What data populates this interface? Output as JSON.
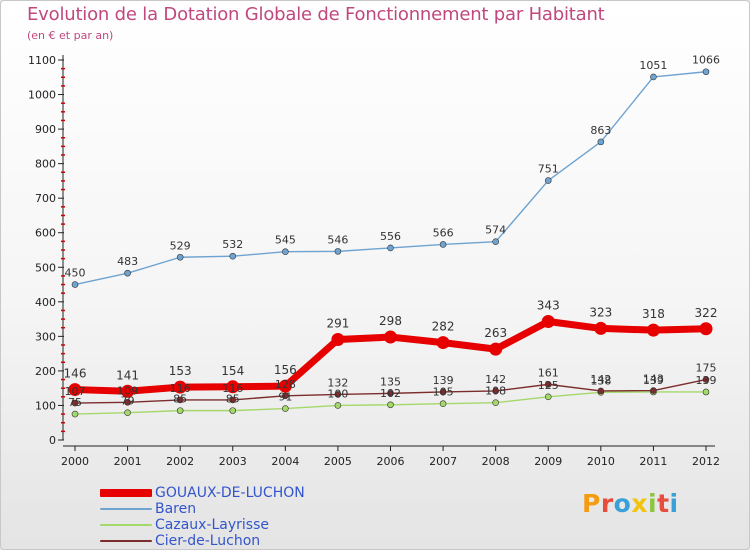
{
  "header": {
    "title": "Evolution de la Dotation Globale de Fonctionnement par Habitant",
    "subtitle": "(en € et par an)"
  },
  "logo": {
    "text": "Proxiti",
    "colors": [
      "#f39c12",
      "#e74c3c",
      "#3aa0d8",
      "#f1c40f",
      "#8cc63f",
      "#e74c3c",
      "#3aa0d8"
    ]
  },
  "chart_data": {
    "type": "line",
    "title": "Evolution de la Dotation Globale de Fonctionnement par Habitant",
    "subtitle": "(en € et par an)",
    "xlabel": "",
    "ylabel": "",
    "ylim": [
      0,
      1100
    ],
    "y_ticks": [
      0,
      100,
      200,
      300,
      400,
      500,
      600,
      700,
      800,
      900,
      1000,
      1100
    ],
    "x": [
      "2000",
      "2001",
      "2002",
      "2003",
      "2004",
      "2005",
      "2006",
      "2007",
      "2008",
      "2009",
      "2010",
      "2011",
      "2012"
    ],
    "series": [
      {
        "name": "GOUAUX-DE-LUCHON",
        "color": "#e60000",
        "values": [
          146,
          141,
          153,
          154,
          156,
          291,
          298,
          282,
          263,
          343,
          323,
          318,
          322
        ]
      },
      {
        "name": "Baren",
        "color": "#6fa3d0",
        "values": [
          450,
          483,
          529,
          532,
          545,
          546,
          556,
          566,
          574,
          751,
          863,
          1051,
          1066
        ]
      },
      {
        "name": "Cazaux-Layrisse",
        "color": "#a5d86b",
        "values": [
          75,
          79,
          85,
          85,
          91,
          100,
          102,
          105,
          108,
          125,
          138,
          139,
          139
        ]
      },
      {
        "name": "Cier-de-Luchon",
        "color": "#7b2d2d",
        "values": [
          107,
          109,
          116,
          116,
          128,
          132,
          135,
          139,
          142,
          161,
          142,
          143,
          175
        ]
      }
    ]
  }
}
